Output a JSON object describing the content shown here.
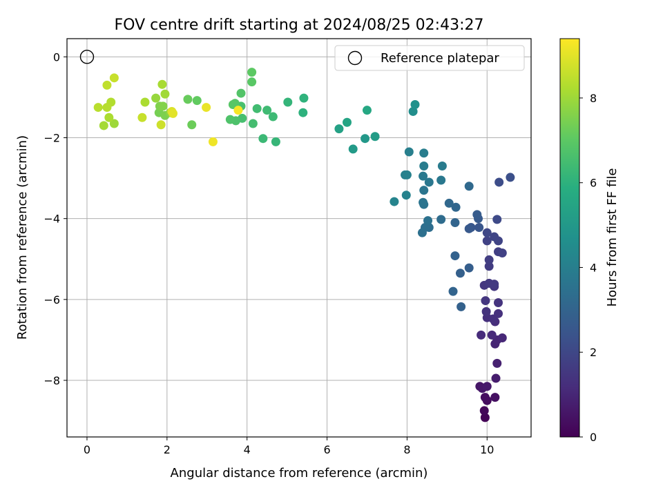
{
  "chart_data": {
    "type": "scatter",
    "title": "FOV centre drift starting at 2024/08/25 02:43:27",
    "xlabel": "Angular distance from reference (arcmin)",
    "ylabel": "Rotation from reference (arcmin)",
    "xlim": [
      -0.5,
      11.1
    ],
    "ylim": [
      -9.4,
      0.45
    ],
    "xticks": [
      0,
      2,
      4,
      6,
      8,
      10
    ],
    "yticks": [
      0,
      -2,
      -4,
      -6,
      -8
    ],
    "xtick_labels": [
      "0",
      "2",
      "4",
      "6",
      "8",
      "10"
    ],
    "ytick_labels": [
      "0",
      "−2",
      "−4",
      "−6",
      "−8"
    ],
    "grid": true,
    "legend": {
      "position": "top-right",
      "entries": [
        "Reference platepar"
      ]
    },
    "colorbar": {
      "label": "Hours from first FF file",
      "colormap": "viridis",
      "range": [
        0,
        9.4
      ],
      "ticks": [
        0,
        2,
        4,
        6,
        8
      ],
      "tick_labels": [
        "0",
        "2",
        "4",
        "6",
        "8"
      ]
    },
    "reference_point": {
      "x": 0,
      "y": 0
    },
    "points": [
      [
        9.95,
        -8.92,
        0.05
      ],
      [
        9.93,
        -8.75,
        0.15
      ],
      [
        10.0,
        -8.5,
        0.3
      ],
      [
        9.95,
        -8.42,
        0.35
      ],
      [
        10.2,
        -8.42,
        0.4
      ],
      [
        9.82,
        -8.15,
        0.55
      ],
      [
        9.88,
        -8.2,
        0.6
      ],
      [
        10.0,
        -8.15,
        0.65
      ],
      [
        10.22,
        -7.95,
        0.75
      ],
      [
        10.25,
        -7.58,
        0.85
      ],
      [
        10.2,
        -7.1,
        0.95
      ],
      [
        10.25,
        -7.0,
        1.0
      ],
      [
        10.38,
        -6.95,
        1.05
      ],
      [
        10.12,
        -6.88,
        1.1
      ],
      [
        9.85,
        -6.88,
        1.15
      ],
      [
        10.2,
        -6.55,
        1.2
      ],
      [
        10.0,
        -6.45,
        1.25
      ],
      [
        10.15,
        -6.48,
        1.3
      ],
      [
        10.28,
        -6.35,
        1.3
      ],
      [
        9.98,
        -6.3,
        1.35
      ],
      [
        10.28,
        -6.08,
        1.4
      ],
      [
        9.96,
        -6.03,
        1.45
      ],
      [
        10.18,
        -5.68,
        1.5
      ],
      [
        9.93,
        -5.65,
        1.5
      ],
      [
        10.05,
        -5.6,
        1.55
      ],
      [
        10.18,
        -5.62,
        1.6
      ],
      [
        10.05,
        -5.18,
        1.65
      ],
      [
        10.05,
        -5.02,
        1.7
      ],
      [
        10.28,
        -4.82,
        1.75
      ],
      [
        10.38,
        -4.85,
        1.8
      ],
      [
        10.0,
        -4.55,
        1.85
      ],
      [
        10.28,
        -4.55,
        1.9
      ],
      [
        10.18,
        -4.45,
        1.95
      ],
      [
        10.0,
        -4.35,
        2.0
      ],
      [
        10.25,
        -4.02,
        2.1
      ],
      [
        10.3,
        -3.1,
        2.2
      ],
      [
        10.58,
        -2.98,
        2.3
      ],
      [
        9.8,
        -4.22,
        2.5
      ],
      [
        9.6,
        -4.22,
        2.55
      ],
      [
        9.55,
        -4.25,
        2.6
      ],
      [
        9.78,
        -4.0,
        2.65
      ],
      [
        9.75,
        -3.9,
        2.7
      ],
      [
        9.55,
        -5.22,
        2.8
      ],
      [
        9.33,
        -5.35,
        2.85
      ],
      [
        9.35,
        -6.18,
        2.9
      ],
      [
        9.2,
        -4.92,
        2.95
      ],
      [
        9.15,
        -5.8,
        3.0
      ],
      [
        9.2,
        -4.1,
        3.05
      ],
      [
        9.22,
        -3.72,
        3.1
      ],
      [
        9.05,
        -3.62,
        3.15
      ],
      [
        9.55,
        -3.2,
        3.2
      ],
      [
        8.85,
        -4.02,
        3.3
      ],
      [
        8.55,
        -4.22,
        3.35
      ],
      [
        8.45,
        -4.22,
        3.4
      ],
      [
        8.38,
        -4.35,
        3.45
      ],
      [
        8.52,
        -4.05,
        3.5
      ],
      [
        8.42,
        -3.65,
        3.55
      ],
      [
        8.4,
        -3.6,
        3.6
      ],
      [
        8.42,
        -3.3,
        3.65
      ],
      [
        8.55,
        -3.1,
        3.7
      ],
      [
        8.85,
        -3.05,
        3.75
      ],
      [
        8.4,
        -2.95,
        3.8
      ],
      [
        8.88,
        -2.7,
        3.85
      ],
      [
        8.42,
        -2.7,
        3.9
      ],
      [
        8.42,
        -2.38,
        3.95
      ],
      [
        8.05,
        -2.35,
        4.0
      ],
      [
        7.95,
        -2.92,
        4.05
      ],
      [
        8.0,
        -2.92,
        4.1
      ],
      [
        7.98,
        -3.42,
        4.15
      ],
      [
        7.68,
        -3.58,
        4.2
      ],
      [
        8.15,
        -1.35,
        4.6
      ],
      [
        8.2,
        -1.18,
        4.7
      ],
      [
        6.95,
        -2.02,
        5.0
      ],
      [
        6.65,
        -2.28,
        5.05
      ],
      [
        7.2,
        -1.97,
        5.15
      ],
      [
        6.3,
        -1.78,
        5.35
      ],
      [
        6.5,
        -1.62,
        5.45
      ],
      [
        7.0,
        -1.32,
        5.6
      ],
      [
        5.4,
        -1.38,
        6.0
      ],
      [
        5.42,
        -1.02,
        6.05
      ],
      [
        5.02,
        -1.12,
        6.15
      ],
      [
        4.72,
        -2.1,
        6.2
      ],
      [
        4.4,
        -2.02,
        6.3
      ],
      [
        4.65,
        -1.48,
        6.35
      ],
      [
        4.5,
        -1.32,
        6.4
      ],
      [
        4.25,
        -1.28,
        6.45
      ],
      [
        4.15,
        -1.65,
        6.5
      ],
      [
        3.88,
        -1.52,
        6.55
      ],
      [
        3.85,
        -1.22,
        6.6
      ],
      [
        3.72,
        -1.58,
        6.7
      ],
      [
        3.58,
        -1.55,
        6.75
      ],
      [
        3.85,
        -0.9,
        6.8
      ],
      [
        3.7,
        -1.15,
        6.85
      ],
      [
        3.65,
        -1.18,
        6.9
      ],
      [
        4.12,
        -0.62,
        6.95
      ],
      [
        4.12,
        -0.38,
        7.0
      ],
      [
        2.75,
        -1.08,
        7.1
      ],
      [
        2.52,
        -1.05,
        7.2
      ],
      [
        2.62,
        -1.68,
        7.25
      ],
      [
        1.8,
        -1.38,
        7.4
      ],
      [
        1.95,
        -1.45,
        7.5
      ],
      [
        1.82,
        -1.22,
        7.55
      ],
      [
        1.9,
        -1.22,
        7.6
      ],
      [
        2.08,
        -1.38,
        7.7
      ],
      [
        1.72,
        -1.02,
        7.9
      ],
      [
        1.95,
        -0.92,
        8.05
      ],
      [
        1.88,
        -0.68,
        8.15
      ],
      [
        1.45,
        -1.12,
        8.2
      ],
      [
        0.68,
        -1.65,
        8.0
      ],
      [
        0.42,
        -1.7,
        8.1
      ],
      [
        0.55,
        -1.5,
        8.2
      ],
      [
        0.6,
        -1.12,
        8.3
      ],
      [
        0.5,
        -1.25,
        8.35
      ],
      [
        0.28,
        -1.25,
        8.4
      ],
      [
        0.5,
        -0.7,
        8.5
      ],
      [
        0.68,
        -0.52,
        8.6
      ],
      [
        1.38,
        -1.5,
        8.6
      ],
      [
        1.85,
        -1.68,
        8.7
      ],
      [
        2.12,
        -1.35,
        8.9
      ],
      [
        2.15,
        -1.4,
        9.0
      ],
      [
        2.98,
        -1.25,
        9.1
      ],
      [
        3.15,
        -2.1,
        9.2
      ],
      [
        3.78,
        -1.32,
        9.3
      ]
    ]
  }
}
